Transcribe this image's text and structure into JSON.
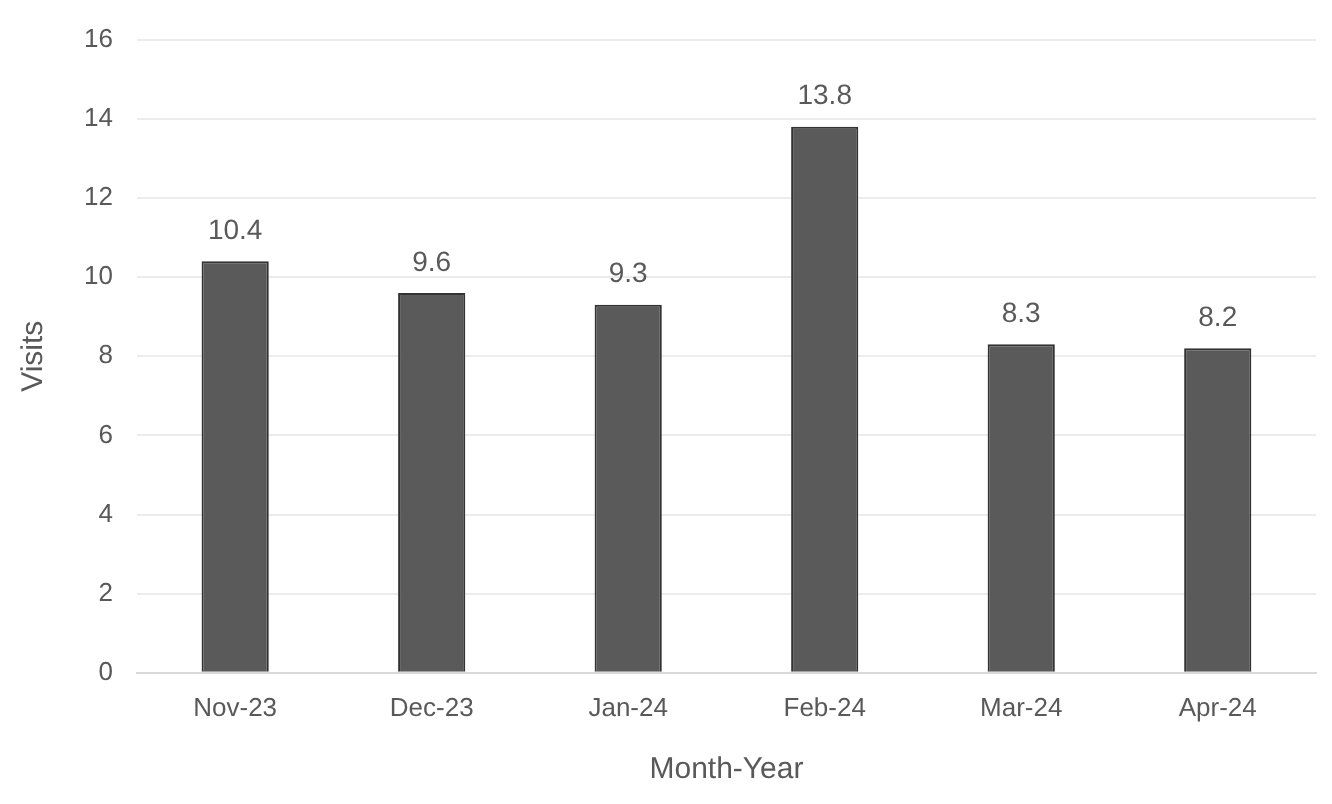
{
  "chart_data": {
    "type": "bar",
    "xlabel": "Month-Year",
    "ylabel": "Visits",
    "categories": [
      "Nov-23",
      "Dec-23",
      "Jan-24",
      "Feb-24",
      "Mar-24",
      "Apr-24"
    ],
    "values": [
      10.4,
      9.6,
      9.3,
      13.8,
      8.3,
      8.2
    ],
    "color": "#5a5a5a",
    "ylim": [
      0,
      16
    ],
    "yticks": [
      0,
      2,
      4,
      6,
      8,
      10,
      12,
      14,
      16
    ],
    "grid": "y",
    "data_labels": true,
    "legend": false
  }
}
